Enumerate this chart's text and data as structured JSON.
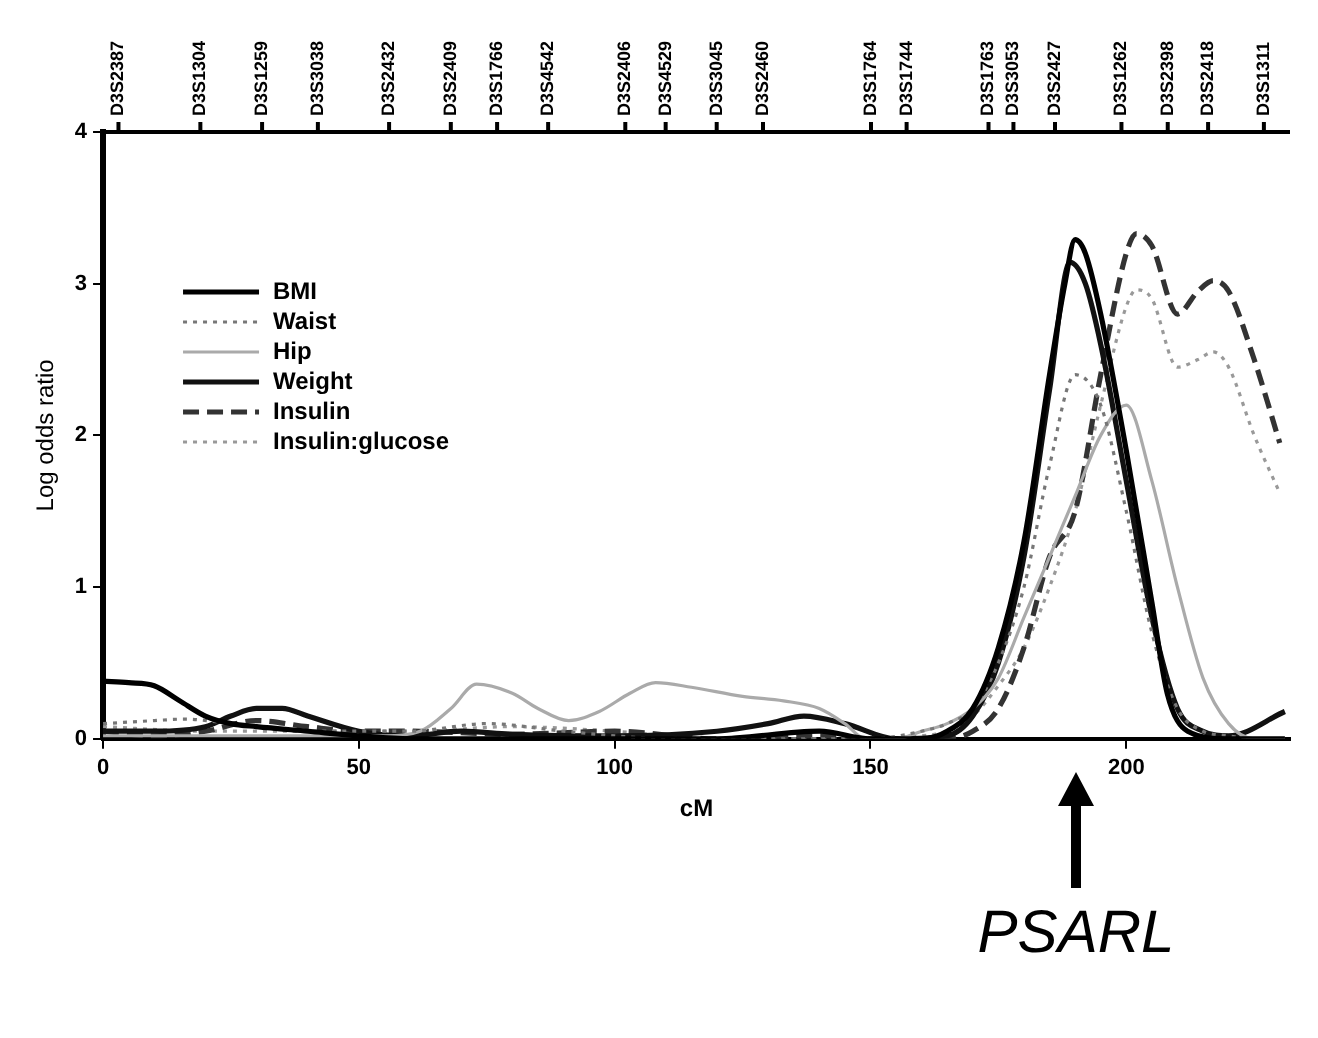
{
  "chart_data": {
    "type": "line",
    "xlabel": "cM",
    "ylabel": "Log odds ratio",
    "xlim": [
      0,
      232
    ],
    "xticks": [
      0,
      50,
      100,
      150,
      200
    ],
    "ylim": [
      0,
      4
    ],
    "yticks": [
      0,
      1,
      2,
      3,
      4
    ],
    "grid": false,
    "legend": "top left",
    "marker": "none",
    "annotations": [
      "D3S2387",
      "D3S1304",
      "D3S1259",
      "D3S3038",
      "D3S2432",
      "D3S2409",
      "D3S1766",
      "D3S4542",
      "D3S2406",
      "D3S4529",
      "D3S3045",
      "D3S2460",
      "D3S1764",
      "D3S1744",
      "D3S1763",
      "D3S3053",
      "D3S2427",
      "D3S1262",
      "D3S2398",
      "D3S2418",
      "D3S1311",
      "PSARL"
    ],
    "series": [
      {
        "name": "BMI",
        "color": "#000000",
        "line_style": "solid",
        "x": [
          0,
          5,
          10,
          15,
          20,
          25,
          30,
          40,
          50,
          60,
          80,
          100,
          120,
          140,
          150,
          160,
          165,
          170,
          175,
          180,
          185,
          188,
          190,
          192,
          195,
          200,
          205,
          208,
          212,
          220,
          231
        ],
        "values": [
          0.38,
          0.37,
          0.35,
          0.25,
          0.15,
          0.1,
          0.08,
          0.05,
          0.02,
          0,
          0,
          0,
          0,
          0.05,
          0,
          0,
          0.05,
          0.2,
          0.6,
          1.3,
          2.4,
          3.0,
          3.29,
          3.2,
          2.8,
          1.9,
          0.9,
          0.3,
          0.05,
          0,
          0
        ]
      },
      {
        "name": "Waist",
        "color": "#777777",
        "line_style": "dotted",
        "x": [
          0,
          10,
          16,
          25,
          40,
          60,
          75,
          90,
          100,
          110,
          130,
          150,
          160,
          165,
          170,
          175,
          180,
          185,
          190,
          195,
          200,
          205,
          210,
          215,
          220,
          225,
          231
        ],
        "values": [
          0.1,
          0.12,
          0.13,
          0.1,
          0.05,
          0.05,
          0.1,
          0.05,
          0.02,
          0,
          0,
          0,
          0.05,
          0.1,
          0.2,
          0.5,
          1.0,
          1.8,
          2.4,
          2.2,
          1.5,
          0.7,
          0.2,
          0.05,
          0.02,
          0,
          0
        ]
      },
      {
        "name": "Hip",
        "color": "#aaaaaa",
        "line_style": "solid",
        "x": [
          0,
          20,
          40,
          55,
          62,
          68,
          73,
          80,
          85,
          91,
          97,
          103,
          108,
          115,
          125,
          133,
          140,
          145,
          149,
          155,
          160,
          165,
          170,
          175,
          180,
          185,
          190,
          195,
          200,
          205,
          210,
          215,
          220,
          225,
          231
        ],
        "values": [
          0.02,
          0.02,
          0.02,
          0.02,
          0.05,
          0.2,
          0.36,
          0.3,
          0.2,
          0.12,
          0.18,
          0.3,
          0.37,
          0.34,
          0.28,
          0.25,
          0.2,
          0.1,
          0,
          0,
          0.05,
          0.1,
          0.2,
          0.4,
          0.8,
          1.2,
          1.6,
          2.0,
          2.2,
          1.7,
          1.0,
          0.4,
          0.1,
          0,
          0
        ]
      },
      {
        "name": "Weight",
        "color": "#111111",
        "line_style": "solid",
        "x": [
          0,
          10,
          20,
          25,
          30,
          35,
          40,
          50,
          60,
          70,
          80,
          100,
          120,
          130,
          137,
          145,
          155,
          165,
          170,
          175,
          180,
          185,
          189,
          192,
          195,
          200,
          205,
          210,
          215,
          220,
          231
        ],
        "values": [
          0.05,
          0.05,
          0.08,
          0.15,
          0.2,
          0.2,
          0.15,
          0.05,
          0.02,
          0.05,
          0.03,
          0.02,
          0.05,
          0.1,
          0.15,
          0.1,
          0,
          0.02,
          0.15,
          0.5,
          1.2,
          2.3,
          3.14,
          3.0,
          2.6,
          1.7,
          0.8,
          0.2,
          0.05,
          0.02,
          0.18
        ]
      },
      {
        "name": "Insulin",
        "color": "#333333",
        "line_style": "dashed",
        "x": [
          0,
          10,
          20,
          30,
          40,
          50,
          60,
          80,
          100,
          120,
          140,
          150,
          160,
          165,
          170,
          175,
          180,
          185,
          190,
          195,
          200,
          202,
          205,
          210,
          214,
          217,
          220,
          225,
          230
        ],
        "values": [
          0.05,
          0.02,
          0.05,
          0.12,
          0.08,
          0.05,
          0.05,
          0.03,
          0.05,
          0,
          0.02,
          0,
          0,
          0,
          0.05,
          0.2,
          0.6,
          1.2,
          1.5,
          2.4,
          3.2,
          3.33,
          3.25,
          2.8,
          2.95,
          3.02,
          2.95,
          2.5,
          1.95
        ]
      },
      {
        "name": "Insulin:glucose",
        "color": "#999999",
        "line_style": "dotted",
        "x": [
          0,
          20,
          40,
          60,
          80,
          100,
          120,
          140,
          160,
          165,
          170,
          175,
          180,
          185,
          190,
          195,
          200,
          202,
          205,
          210,
          214,
          217,
          220,
          225,
          230
        ],
        "values": [
          0.08,
          0.05,
          0.05,
          0.05,
          0.08,
          0.05,
          0,
          0,
          0.02,
          0.05,
          0.15,
          0.35,
          0.6,
          1.0,
          1.5,
          2.2,
          2.85,
          2.96,
          2.9,
          2.45,
          2.5,
          2.55,
          2.45,
          2.0,
          1.62
        ]
      }
    ]
  }
}
